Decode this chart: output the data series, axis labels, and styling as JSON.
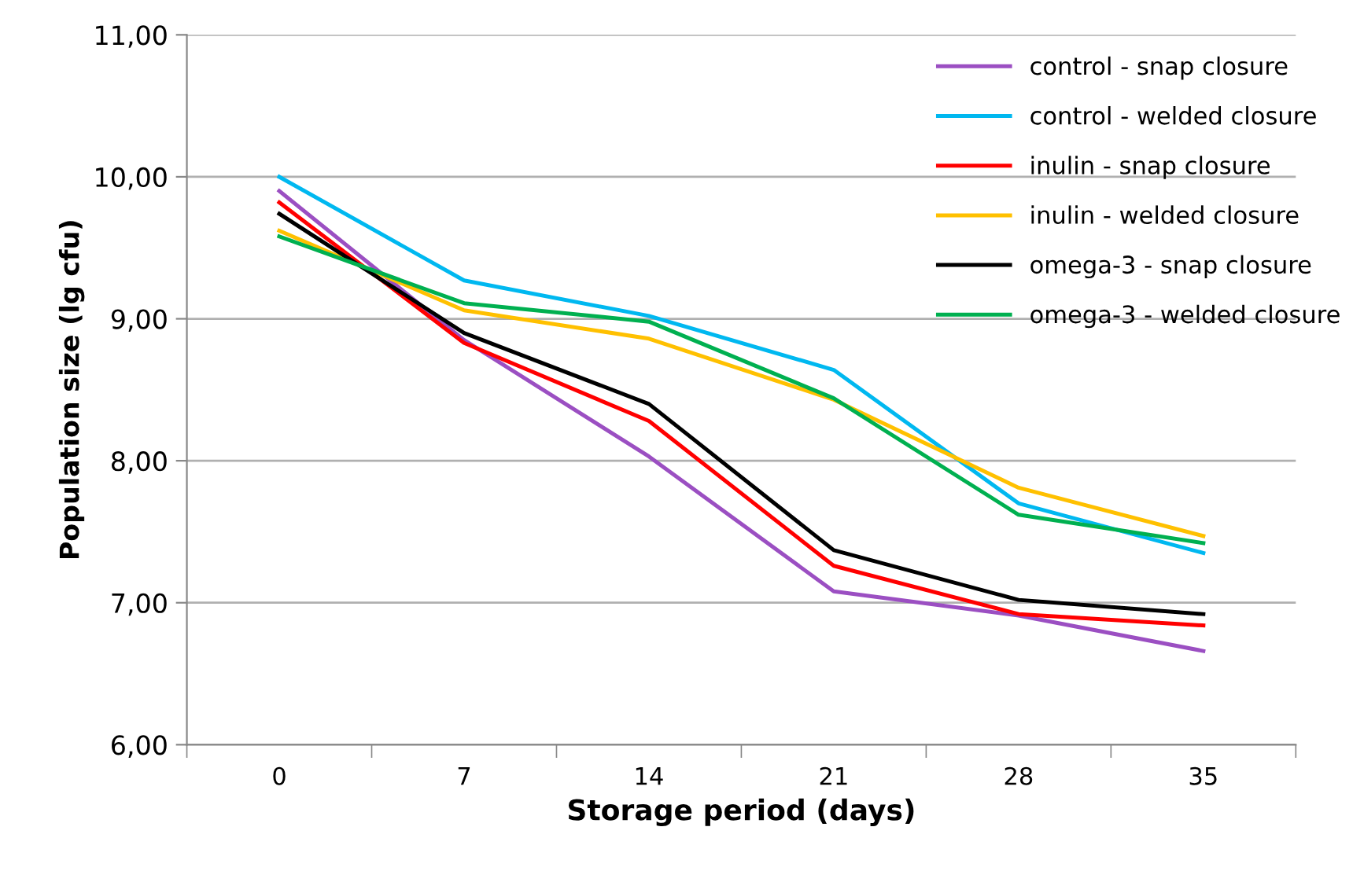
{
  "chart_data": {
    "type": "line",
    "xlabel": "Storage period (days)",
    "ylabel": "Population size (lg cfu)",
    "categories": [
      "0",
      "7",
      "14",
      "21",
      "28",
      "35"
    ],
    "series": [
      {
        "name": "control - snap closure",
        "color": "#9b4fc2",
        "values": [
          9.9,
          8.85,
          8.03,
          7.08,
          6.91,
          6.66
        ]
      },
      {
        "name": "control - welded closure",
        "color": "#00b8f0",
        "values": [
          10.0,
          9.27,
          9.02,
          8.64,
          7.7,
          7.35
        ]
      },
      {
        "name": "inulin - snap closure",
        "color": "#ff0000",
        "values": [
          9.82,
          8.83,
          8.28,
          7.26,
          6.92,
          6.84
        ]
      },
      {
        "name": "inulin - welded closure",
        "color": "#ffc000",
        "values": [
          9.62,
          9.06,
          8.86,
          8.43,
          7.81,
          7.47
        ]
      },
      {
        "name": "omega-3 - snap closure",
        "color": "#000000",
        "values": [
          9.74,
          8.9,
          8.4,
          7.37,
          7.02,
          6.92
        ]
      },
      {
        "name": "omega-3 - welded closure",
        "color": "#00b050",
        "values": [
          9.58,
          9.11,
          8.98,
          8.44,
          7.62,
          7.42
        ]
      }
    ],
    "ylim": [
      6,
      11
    ],
    "yticks": [
      {
        "value": 6,
        "label": "6,00"
      },
      {
        "value": 7,
        "label": "7,00"
      },
      {
        "value": 8,
        "label": "8,00"
      },
      {
        "value": 9,
        "label": "9,00"
      },
      {
        "value": 10,
        "label": "10,00"
      },
      {
        "value": 11,
        "label": "11,00"
      }
    ],
    "grid": "y",
    "legend": "top right",
    "marker": "none",
    "line_style": "solid"
  }
}
